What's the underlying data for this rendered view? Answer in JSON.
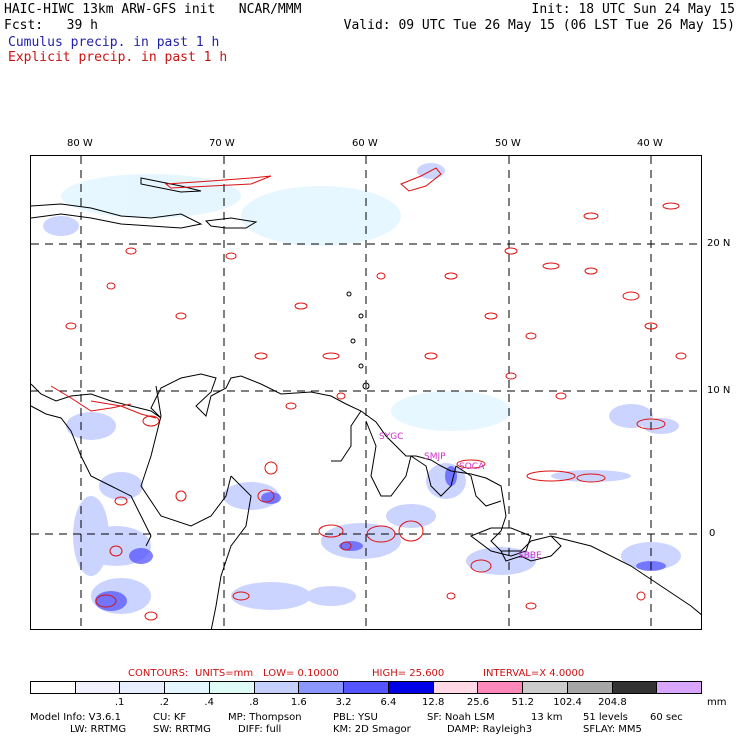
{
  "header": {
    "line1_left": "HAIC-HIWC 13km ARW-GFS init   NCAR/MMM",
    "line1_right": "Init: 18 UTC Sun 24 May 15",
    "line2_left": "Fcst:   39 h",
    "line2_right": "Valid: 09 UTC Tue 26 May 15 (06 LST Tue 26 May 15)",
    "cumulus_label": "Cumulus precip. in past 1 h",
    "explicit_label": "Explicit precip. in past 1 h"
  },
  "map": {
    "longitude_labels": [
      "80 W",
      "70 W",
      "60 W",
      "50 W",
      "40 W"
    ],
    "latitude_labels": [
      "20 N",
      "10 N",
      "0"
    ],
    "station_labels": [
      "SYGC",
      "SMJP",
      "SOCA",
      "SBBE"
    ],
    "colors": {
      "contour": "#dd1111",
      "coast": "#000000",
      "grid": "#000000",
      "station": "#cc33cc"
    }
  },
  "contour_info": {
    "contours": "CONTOURS:",
    "units": "UNITS=mm",
    "low": "LOW=  0.10000",
    "high": "HIGH=  25.600",
    "interval": "INTERVAL=X  4.0000"
  },
  "colorbar": {
    "unit": "mm",
    "labels": [
      ".1",
      ".2",
      ".4",
      ".8",
      "1.6",
      "3.2",
      "6.4",
      "12.8",
      "25.6",
      "51.2",
      "102.4",
      "204.8"
    ],
    "colors": [
      "#ffffff",
      "#f2f2ff",
      "#e6eeff",
      "#e4f6ff",
      "#dffcf6",
      "#c6d0ff",
      "#8c96ff",
      "#5555ff",
      "#0000e6",
      "#ffd9e6",
      "#ff88bb",
      "#cccccc",
      "#a6a6a6",
      "#333333",
      "#d9a6ff"
    ]
  },
  "footer": {
    "line1": [
      "Model Info: V3.6.1",
      "CU: KF",
      "MP: Thompson",
      "PBL: YSU",
      "SF: Noah LSM",
      "13 km",
      "51 levels",
      "60 sec"
    ],
    "line2": [
      "LW: RRTMG",
      "SW: RRTMG",
      "DIFF: full",
      "KM: 2D Smagor",
      "DAMP: Rayleigh3",
      "SFLAY: MM5"
    ]
  }
}
